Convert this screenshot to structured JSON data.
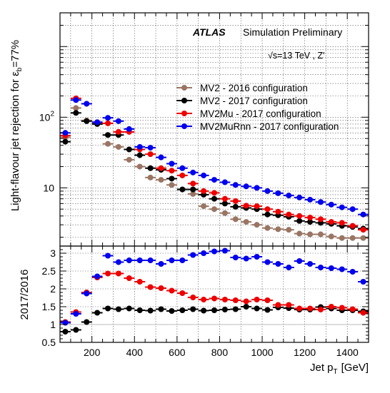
{
  "chart_data": {
    "type": "scatter",
    "x_bin_edges": [
      50,
      100,
      150,
      200,
      250,
      300,
      350,
      400,
      450,
      500,
      550,
      600,
      650,
      700,
      750,
      800,
      850,
      900,
      950,
      1000,
      1050,
      1100,
      1150,
      1200,
      1250,
      1300,
      1350,
      1400,
      1450,
      1500
    ],
    "xlabel": "Jet p",
    "xlabel_sub": "T",
    "xlabel_unit": "[GeV]",
    "xlim": [
      50,
      1500
    ],
    "x_tick_labels": [
      "200",
      "400",
      "600",
      "800",
      "1000",
      "1200",
      "1400"
    ],
    "legend_placement": "top-right",
    "grid": true,
    "top_panel": {
      "ylabel": "Light-flavour jet rejection for ε",
      "ylabel_sub": "b",
      "ylabel_suffix": "=77%",
      "yscale": "log",
      "ylim": [
        1.5,
        3000
      ],
      "y_tick_labels": [
        {
          "value": 100,
          "base": "10",
          "exp": "2"
        },
        {
          "value": 10,
          "base": "10",
          "exp": ""
        }
      ],
      "annotation_atlas": "ATLAS",
      "annotation_sim": "Simulation Preliminary",
      "annotation_energy_root": "√s",
      "annotation_energy_rest": "=13 TeV , Z'",
      "series": [
        {
          "name": "MV2 - 2016 configuration",
          "color": "#9a7563",
          "values": [
            52,
            135,
            90,
            82,
            42,
            38,
            25,
            20,
            14,
            13,
            11,
            9.5,
            8.2,
            5.5,
            5.0,
            4.4,
            3.6,
            3.3,
            3.0,
            2.7,
            2.6,
            2.55,
            2.25,
            2.2,
            2.2,
            2.05,
            1.95,
            1.95,
            1.95
          ]
        },
        {
          "name": "MV2 - 2017 configuration",
          "color": "#000000",
          "values": [
            45,
            115,
            88,
            80,
            56,
            56,
            35,
            29,
            19,
            18,
            13.5,
            9.5,
            9.5,
            8.0,
            7.0,
            6.0,
            5.4,
            5.2,
            5.0,
            4.2,
            4.1,
            3.9,
            3.4,
            3.3,
            3.2,
            3.1,
            2.9,
            2.8,
            2.65
          ]
        },
        {
          "name": "MV2Mu - 2017 configuration",
          "color": "#ee0000",
          "values": [
            55,
            185,
            155,
            85,
            82,
            62,
            62,
            35,
            30,
            19,
            17.5,
            15,
            11.5,
            9.0,
            8.5,
            7.0,
            6.5,
            5.6,
            5.5,
            5.0,
            4.6,
            4.2,
            4.0,
            3.8,
            3.6,
            3.3,
            3.2,
            2.9,
            2.55
          ]
        },
        {
          "name": "MV2MuRnn - 2017 configuration",
          "color": "#0000ee",
          "values": [
            60,
            175,
            155,
            85,
            98,
            88,
            68,
            38,
            37,
            27,
            22,
            19,
            16.5,
            15,
            13,
            12,
            11,
            10.5,
            10,
            9.0,
            8.4,
            7.8,
            7.3,
            6.8,
            6.3,
            5.8,
            5.3,
            5.0,
            4.2
          ]
        }
      ]
    },
    "ratio_panel": {
      "ylabel": "2017/2016",
      "ylim": [
        0.5,
        3.2
      ],
      "reference_line": 1,
      "y_tick_labels": [
        "0.5",
        "1",
        "1.5",
        "2",
        "2.5",
        "3"
      ],
      "series": [
        {
          "name": "MV2 - 2017 configuration",
          "color": "#000000",
          "values": [
            0.8,
            0.85,
            1.07,
            1.33,
            1.45,
            1.43,
            1.45,
            1.4,
            1.39,
            1.43,
            1.38,
            1.4,
            1.43,
            1.39,
            1.4,
            1.42,
            1.43,
            1.5,
            1.45,
            1.41,
            1.48,
            1.46,
            1.42,
            1.42,
            1.49,
            1.45,
            1.4,
            1.4,
            1.37
          ]
        },
        {
          "name": "MV2Mu - 2017 configuration",
          "color": "#ee0000",
          "values": [
            1.07,
            1.35,
            1.9,
            2.32,
            2.43,
            2.43,
            2.3,
            2.2,
            2.05,
            2.02,
            1.95,
            1.88,
            1.76,
            1.7,
            1.73,
            1.7,
            1.68,
            1.65,
            1.7,
            1.68,
            1.55,
            1.55,
            1.45,
            1.45,
            1.42,
            1.5,
            1.47,
            1.43,
            1.33
          ]
        },
        {
          "name": "MV2MuRnn - 2017 configuration",
          "color": "#0000ee",
          "values": [
            1.05,
            1.3,
            1.87,
            2.35,
            2.93,
            2.75,
            2.8,
            2.8,
            2.8,
            2.7,
            2.8,
            2.8,
            2.95,
            3.0,
            3.05,
            3.07,
            2.88,
            2.85,
            2.9,
            2.75,
            2.7,
            2.6,
            2.78,
            2.7,
            2.6,
            2.58,
            2.55,
            2.48,
            2.2
          ]
        }
      ]
    }
  }
}
